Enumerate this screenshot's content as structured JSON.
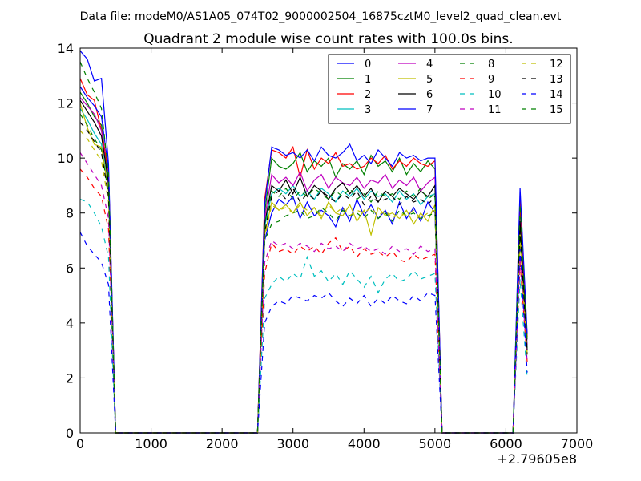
{
  "chart_data": {
    "type": "line",
    "suptitle": "Data file: modeM0/AS1A05_074T02_9000002504_16875cztM0_level2_quad_clean.evt",
    "title": "Quadrant 2 module wise count rates with 100.0s bins.",
    "xlabel": "",
    "ylabel": "",
    "x_offset_label": "+2.79605e8",
    "xlim": [
      0,
      7000
    ],
    "ylim": [
      0,
      14
    ],
    "xticks": [
      0,
      1000,
      2000,
      3000,
      4000,
      5000,
      6000,
      7000
    ],
    "yticks": [
      0,
      2,
      4,
      6,
      8,
      10,
      12,
      14
    ],
    "grid": false,
    "legend": {
      "placement": "top-right",
      "columns": 4
    },
    "x": [
      0,
      100,
      200,
      300,
      400,
      500,
      600,
      700,
      800,
      900,
      1000,
      1100,
      1200,
      1300,
      1400,
      1500,
      1600,
      1700,
      1800,
      1900,
      2000,
      2100,
      2200,
      2300,
      2400,
      2500,
      2600,
      2700,
      2800,
      2900,
      3000,
      3100,
      3200,
      3300,
      3400,
      3500,
      3600,
      3700,
      3800,
      3900,
      4000,
      4100,
      4200,
      4300,
      4400,
      4500,
      4600,
      4700,
      4800,
      4900,
      5000,
      5100,
      5200,
      5300,
      5400,
      5500,
      5600,
      5700,
      5800,
      5900,
      6000,
      6100,
      6200,
      6300
    ],
    "series": [
      {
        "name": "0",
        "color": "#0000ff",
        "dash": "solid",
        "values": [
          13.9,
          13.6,
          12.8,
          12.9,
          9.8,
          0,
          0,
          0,
          0,
          0,
          0,
          0,
          0,
          0,
          0,
          0,
          0,
          0,
          0,
          0,
          0,
          0,
          0,
          0,
          0,
          0,
          7.0,
          8.0,
          8.5,
          8.3,
          8.6,
          7.8,
          8.4,
          7.9,
          8.1,
          7.9,
          7.5,
          8.2,
          7.7,
          8.5,
          7.9,
          8.3,
          7.8,
          8.1,
          7.6,
          8.4,
          7.8,
          8.2,
          7.7,
          8.4,
          8.0,
          0,
          0,
          0,
          0,
          0,
          0,
          0,
          0,
          0,
          0,
          0,
          7.5,
          3.0
        ]
      },
      {
        "name": "1",
        "color": "#008000",
        "dash": "solid",
        "values": [
          12.4,
          12.0,
          11.5,
          11.2,
          9.2,
          0,
          0,
          0,
          0,
          0,
          0,
          0,
          0,
          0,
          0,
          0,
          0,
          0,
          0,
          0,
          0,
          0,
          0,
          0,
          0,
          0,
          8.0,
          10.0,
          9.7,
          9.6,
          9.8,
          10.2,
          9.5,
          9.9,
          9.7,
          10.0,
          9.3,
          9.8,
          9.6,
          9.9,
          9.4,
          10.1,
          9.7,
          9.9,
          9.5,
          10.0,
          9.4,
          9.8,
          9.5,
          9.9,
          9.6,
          0,
          0,
          0,
          0,
          0,
          0,
          0,
          0,
          0,
          0,
          0,
          8.1,
          3.4
        ]
      },
      {
        "name": "2",
        "color": "#ff0000",
        "dash": "solid",
        "values": [
          12.9,
          12.3,
          12.1,
          11.0,
          9.5,
          0,
          0,
          0,
          0,
          0,
          0,
          0,
          0,
          0,
          0,
          0,
          0,
          0,
          0,
          0,
          0,
          0,
          0,
          0,
          0,
          0,
          8.5,
          10.3,
          10.2,
          10.0,
          10.4,
          9.3,
          10.3,
          9.6,
          10.0,
          9.8,
          10.2,
          9.7,
          9.8,
          9.6,
          9.7,
          10.0,
          9.8,
          10.1,
          9.6,
          9.9,
          9.7,
          10.0,
          9.8,
          9.7,
          9.9,
          0,
          0,
          0,
          0,
          0,
          0,
          0,
          0,
          0,
          0,
          0,
          8.5,
          3.5
        ]
      },
      {
        "name": "3",
        "color": "#00bfbf",
        "dash": "solid",
        "values": [
          11.8,
          11.4,
          10.9,
          10.5,
          8.9,
          0,
          0,
          0,
          0,
          0,
          0,
          0,
          0,
          0,
          0,
          0,
          0,
          0,
          0,
          0,
          0,
          0,
          0,
          0,
          0,
          0,
          7.5,
          8.7,
          8.9,
          8.7,
          9.0,
          8.6,
          8.8,
          8.5,
          8.9,
          8.7,
          8.4,
          8.8,
          8.6,
          8.9,
          8.5,
          8.8,
          8.6,
          8.7,
          8.4,
          8.8,
          8.5,
          8.7,
          8.3,
          8.6,
          8.7,
          0,
          0,
          0,
          0,
          0,
          0,
          0,
          0,
          0,
          0,
          0,
          7.4,
          3.1
        ]
      },
      {
        "name": "4",
        "color": "#bf00bf",
        "dash": "solid",
        "values": [
          12.2,
          11.9,
          11.6,
          11.0,
          9.0,
          0,
          0,
          0,
          0,
          0,
          0,
          0,
          0,
          0,
          0,
          0,
          0,
          0,
          0,
          0,
          0,
          0,
          0,
          0,
          0,
          0,
          7.8,
          9.4,
          9.1,
          9.3,
          9.0,
          9.5,
          8.8,
          9.2,
          9.4,
          8.9,
          9.3,
          9.1,
          9.0,
          9.3,
          8.9,
          9.2,
          9.1,
          9.4,
          8.9,
          9.2,
          9.0,
          9.3,
          8.8,
          9.1,
          9.3,
          0,
          0,
          0,
          0,
          0,
          0,
          0,
          0,
          0,
          0,
          0,
          7.8,
          3.2
        ]
      },
      {
        "name": "5",
        "color": "#bfbf00",
        "dash": "solid",
        "values": [
          12.0,
          11.1,
          10.5,
          10.4,
          8.8,
          0,
          0,
          0,
          0,
          0,
          0,
          0,
          0,
          0,
          0,
          0,
          0,
          0,
          0,
          0,
          0,
          0,
          0,
          0,
          0,
          0,
          7.2,
          8.4,
          8.1,
          8.3,
          8.0,
          8.4,
          7.9,
          8.2,
          7.8,
          8.4,
          8.0,
          7.9,
          8.3,
          7.7,
          8.1,
          7.2,
          8.2,
          7.9,
          8.0,
          7.8,
          8.1,
          7.6,
          8.0,
          7.7,
          8.3,
          0,
          0,
          0,
          0,
          0,
          0,
          0,
          0,
          0,
          0,
          0,
          7.0,
          2.9
        ]
      },
      {
        "name": "6",
        "color": "#000000",
        "dash": "solid",
        "values": [
          12.1,
          11.7,
          11.3,
          10.8,
          9.1,
          0,
          0,
          0,
          0,
          0,
          0,
          0,
          0,
          0,
          0,
          0,
          0,
          0,
          0,
          0,
          0,
          0,
          0,
          0,
          0,
          0,
          7.6,
          9.0,
          8.8,
          9.2,
          8.7,
          9.3,
          8.6,
          9.0,
          8.8,
          8.5,
          8.9,
          9.1,
          8.7,
          9.0,
          8.6,
          8.9,
          8.4,
          8.8,
          8.6,
          8.9,
          8.7,
          8.5,
          8.8,
          8.6,
          9.0,
          0,
          0,
          0,
          0,
          0,
          0,
          0,
          0,
          0,
          0,
          0,
          7.7,
          3.0
        ]
      },
      {
        "name": "7",
        "color": "#0000ff",
        "dash": "solid",
        "values": [
          12.6,
          12.2,
          11.9,
          11.5,
          9.6,
          0,
          0,
          0,
          0,
          0,
          0,
          0,
          0,
          0,
          0,
          0,
          0,
          0,
          0,
          0,
          0,
          0,
          0,
          0,
          0,
          0,
          8.3,
          10.4,
          10.3,
          10.1,
          10.2,
          10.0,
          10.3,
          9.9,
          10.4,
          10.1,
          10.0,
          10.2,
          10.5,
          9.9,
          10.1,
          9.8,
          10.3,
          10.0,
          9.7,
          10.2,
          10.0,
          10.1,
          9.9,
          10.0,
          10.0,
          0,
          0,
          0,
          0,
          0,
          0,
          0,
          0,
          0,
          0,
          0,
          8.9,
          3.6
        ]
      },
      {
        "name": "8",
        "color": "#008000",
        "dash": "dashed",
        "values": [
          11.6,
          11.2,
          10.7,
          10.3,
          8.7,
          0,
          0,
          0,
          0,
          0,
          0,
          0,
          0,
          0,
          0,
          0,
          0,
          0,
          0,
          0,
          0,
          0,
          0,
          0,
          0,
          0,
          7.0,
          7.6,
          7.7,
          7.9,
          8.0,
          8.1,
          7.8,
          7.9,
          8.2,
          8.0,
          7.7,
          8.1,
          7.9,
          8.0,
          7.8,
          8.1,
          7.8,
          8.0,
          7.7,
          8.1,
          7.9,
          8.0,
          7.8,
          7.9,
          8.0,
          0,
          0,
          0,
          0,
          0,
          0,
          0,
          0,
          0,
          0,
          0,
          7.2,
          2.9
        ]
      },
      {
        "name": "9",
        "color": "#ff0000",
        "dash": "dashed",
        "values": [
          9.6,
          9.3,
          8.9,
          8.6,
          7.4,
          0,
          0,
          0,
          0,
          0,
          0,
          0,
          0,
          0,
          0,
          0,
          0,
          0,
          0,
          0,
          0,
          0,
          0,
          0,
          0,
          0,
          5.8,
          6.9,
          6.6,
          6.7,
          6.5,
          6.8,
          6.6,
          6.8,
          6.5,
          6.9,
          7.1,
          6.6,
          6.8,
          6.4,
          6.7,
          6.5,
          6.6,
          6.4,
          6.6,
          6.3,
          6.2,
          6.5,
          6.3,
          6.4,
          6.5,
          0,
          0,
          0,
          0,
          0,
          0,
          0,
          0,
          0,
          0,
          0,
          6.2,
          2.6
        ]
      },
      {
        "name": "10",
        "color": "#00bfbf",
        "dash": "dashed",
        "values": [
          8.5,
          8.4,
          8.0,
          7.5,
          6.4,
          0,
          0,
          0,
          0,
          0,
          0,
          0,
          0,
          0,
          0,
          0,
          0,
          0,
          0,
          0,
          0,
          0,
          0,
          0,
          0,
          0,
          4.9,
          5.4,
          5.7,
          5.5,
          5.8,
          5.6,
          6.4,
          5.7,
          5.9,
          5.5,
          5.8,
          5.4,
          5.9,
          5.6,
          5.3,
          5.7,
          5.1,
          5.6,
          5.8,
          5.5,
          5.6,
          5.9,
          5.6,
          5.7,
          5.8,
          0,
          0,
          0,
          0,
          0,
          0,
          0,
          0,
          0,
          0,
          0,
          5.6,
          2.0
        ]
      },
      {
        "name": "11",
        "color": "#bf00bf",
        "dash": "dashed",
        "values": [
          10.2,
          9.8,
          9.4,
          9.0,
          7.8,
          0,
          0,
          0,
          0,
          0,
          0,
          0,
          0,
          0,
          0,
          0,
          0,
          0,
          0,
          0,
          0,
          0,
          0,
          0,
          0,
          0,
          6.2,
          7.0,
          6.8,
          6.9,
          6.7,
          6.9,
          6.8,
          6.6,
          6.9,
          6.7,
          6.8,
          6.6,
          6.9,
          6.7,
          6.8,
          6.6,
          6.7,
          6.5,
          6.8,
          6.6,
          6.7,
          6.5,
          6.8,
          6.6,
          6.7,
          0,
          0,
          0,
          0,
          0,
          0,
          0,
          0,
          0,
          0,
          0,
          6.4,
          2.6
        ]
      },
      {
        "name": "12",
        "color": "#bfbf00",
        "dash": "dashed",
        "values": [
          11.0,
          10.7,
          10.3,
          9.9,
          8.4,
          0,
          0,
          0,
          0,
          0,
          0,
          0,
          0,
          0,
          0,
          0,
          0,
          0,
          0,
          0,
          0,
          0,
          0,
          0,
          0,
          0,
          7.1,
          8.3,
          8.1,
          8.2,
          8.0,
          8.3,
          8.1,
          8.2,
          7.9,
          8.3,
          8.0,
          8.2,
          7.9,
          8.1,
          8.0,
          8.2,
          7.9,
          8.1,
          7.8,
          8.0,
          7.9,
          8.1,
          7.8,
          8.0,
          8.1,
          0,
          0,
          0,
          0,
          0,
          0,
          0,
          0,
          0,
          0,
          0,
          7.3,
          2.8
        ]
      },
      {
        "name": "13",
        "color": "#000000",
        "dash": "dashed",
        "values": [
          11.3,
          11.0,
          10.6,
          10.2,
          8.6,
          0,
          0,
          0,
          0,
          0,
          0,
          0,
          0,
          0,
          0,
          0,
          0,
          0,
          0,
          0,
          0,
          0,
          0,
          0,
          0,
          0,
          7.3,
          8.6,
          8.8,
          8.5,
          8.9,
          8.4,
          8.7,
          8.5,
          8.8,
          8.6,
          8.4,
          8.7,
          8.5,
          8.8,
          8.3,
          8.6,
          8.4,
          8.5,
          8.6,
          8.3,
          8.6,
          8.4,
          8.5,
          8.3,
          8.6,
          0,
          0,
          0,
          0,
          0,
          0,
          0,
          0,
          0,
          0,
          0,
          7.4,
          2.9
        ]
      },
      {
        "name": "14",
        "color": "#0000ff",
        "dash": "dashed",
        "values": [
          7.3,
          6.8,
          6.5,
          6.2,
          5.4,
          0,
          0,
          0,
          0,
          0,
          0,
          0,
          0,
          0,
          0,
          0,
          0,
          0,
          0,
          0,
          0,
          0,
          0,
          0,
          0,
          0,
          4.0,
          4.6,
          4.8,
          4.7,
          5.0,
          4.9,
          4.8,
          5.0,
          4.9,
          5.1,
          4.8,
          4.6,
          4.9,
          4.7,
          5.0,
          4.6,
          4.9,
          4.7,
          5.0,
          4.8,
          4.7,
          5.0,
          4.8,
          5.1,
          5.0,
          0,
          0,
          0,
          0,
          0,
          0,
          0,
          0,
          0,
          0,
          0,
          6.7,
          2.2
        ]
      },
      {
        "name": "15",
        "color": "#008000",
        "dash": "dashed",
        "values": [
          13.5,
          12.9,
          12.4,
          11.8,
          9.4,
          0,
          0,
          0,
          0,
          0,
          0,
          0,
          0,
          0,
          0,
          0,
          0,
          0,
          0,
          0,
          0,
          0,
          0,
          0,
          0,
          0,
          7.6,
          8.8,
          8.6,
          8.9,
          8.5,
          8.8,
          8.6,
          8.9,
          8.7,
          8.5,
          8.8,
          8.6,
          8.9,
          8.5,
          8.7,
          8.4,
          8.8,
          8.6,
          8.7,
          8.5,
          8.8,
          8.6,
          8.9,
          8.5,
          8.7,
          0,
          0,
          0,
          0,
          0,
          0,
          0,
          0,
          0,
          0,
          0,
          8.3,
          3.3
        ]
      }
    ]
  }
}
